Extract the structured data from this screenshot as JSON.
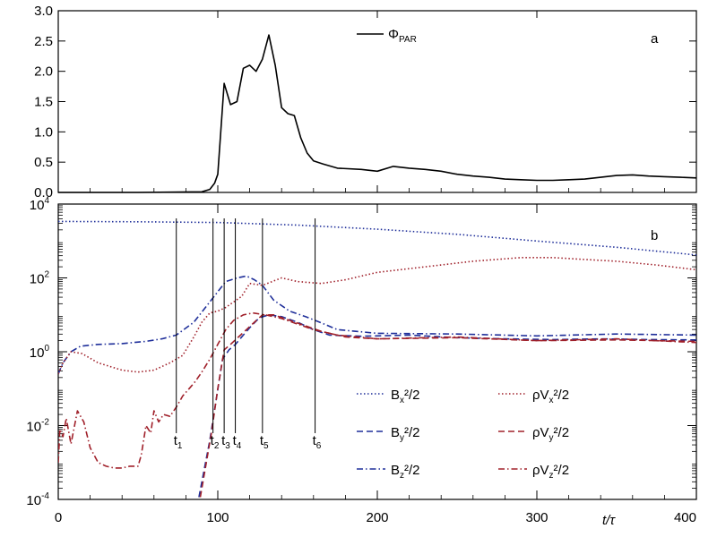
{
  "chart_data": [
    {
      "panel": "a",
      "type": "line",
      "panel_label": "a",
      "x_range": [
        0,
        400
      ],
      "y_range": [
        0,
        3
      ],
      "yticks": [
        "0.0",
        "0.5",
        "1.0",
        "1.5",
        "2.0",
        "2.5",
        "3.0"
      ],
      "ytick_values": [
        0,
        0.5,
        1.0,
        1.5,
        2.0,
        2.5,
        3.0
      ],
      "legend": {
        "symbol": "Φ",
        "subscript": "PAR"
      },
      "series": [
        {
          "name": "Φ_PAR",
          "color": "#000000",
          "style": "solid",
          "x": [
            0,
            50,
            90,
            95,
            98,
            100,
            104,
            108,
            112,
            116,
            120,
            124,
            128,
            132,
            136,
            140,
            144,
            148,
            152,
            156,
            160,
            166,
            175,
            190,
            200,
            210,
            220,
            230,
            240,
            250,
            260,
            270,
            280,
            290,
            300,
            310,
            320,
            330,
            340,
            350,
            360,
            370,
            380,
            390,
            400
          ],
          "y": [
            0,
            0,
            0.01,
            0.05,
            0.15,
            0.3,
            1.8,
            1.45,
            1.5,
            2.05,
            2.1,
            2.0,
            2.2,
            2.6,
            2.1,
            1.4,
            1.3,
            1.27,
            0.9,
            0.65,
            0.52,
            0.47,
            0.4,
            0.38,
            0.35,
            0.43,
            0.4,
            0.38,
            0.35,
            0.3,
            0.27,
            0.25,
            0.22,
            0.21,
            0.2,
            0.2,
            0.21,
            0.22,
            0.25,
            0.28,
            0.29,
            0.27,
            0.26,
            0.25,
            0.24
          ]
        }
      ]
    },
    {
      "panel": "b",
      "type": "line",
      "panel_label": "b",
      "x_range": [
        0,
        400
      ],
      "y_scale": "log",
      "y_range_log10": [
        -4,
        4
      ],
      "xlabel": "t/τ",
      "xticks": [
        "0",
        "100",
        "200",
        "300",
        "400"
      ],
      "xtick_values": [
        0,
        100,
        200,
        300,
        400
      ],
      "ytick_exponents": [
        -4,
        -2,
        0,
        2,
        4
      ],
      "ytick_base": "10",
      "time_markers": [
        {
          "label_main": "t",
          "label_sub": "1",
          "x": 74
        },
        {
          "label_main": "t",
          "label_sub": "2",
          "x": 97
        },
        {
          "label_main": "t",
          "label_sub": "3",
          "x": 104
        },
        {
          "label_main": "t",
          "label_sub": "4",
          "x": 111
        },
        {
          "label_main": "t",
          "label_sub": "5",
          "x": 128
        },
        {
          "label_main": "t",
          "label_sub": "6",
          "x": 161
        }
      ],
      "legend": [
        {
          "text_pre": "B",
          "sub": "x",
          "text_post": "²/2",
          "series": "Bx2"
        },
        {
          "text_pre": "B",
          "sub": "y",
          "text_post": "²/2",
          "series": "By2"
        },
        {
          "text_pre": "B",
          "sub": "z",
          "text_post": "²/2",
          "series": "Bz2"
        },
        {
          "text_pre": "ρV",
          "sub": "x",
          "text_post": "²/2",
          "series": "rVx2"
        },
        {
          "text_pre": "ρV",
          "sub": "y",
          "text_post": "²/2",
          "series": "rVy2"
        },
        {
          "text_pre": "ρV",
          "sub": "z",
          "text_post": "²/2",
          "series": "rVz2"
        }
      ],
      "series": [
        {
          "id": "Bx2",
          "name": "Bx²/2",
          "color": "#1f2f9a",
          "style": "dotted",
          "x": [
            0,
            50,
            100,
            150,
            200,
            250,
            300,
            350,
            400
          ],
          "log10y": [
            3.53,
            3.52,
            3.5,
            3.43,
            3.32,
            3.18,
            3.0,
            2.83,
            2.62
          ]
        },
        {
          "id": "By2",
          "name": "By²/2",
          "color": "#1f2f9a",
          "style": "dashed",
          "x": [
            87,
            91,
            95,
            99,
            103,
            107,
            111,
            116,
            120,
            126,
            132,
            140,
            150,
            160,
            170,
            190,
            220,
            250,
            280,
            310,
            340,
            370,
            400
          ],
          "log10y": [
            -4.2,
            -3.3,
            -2.4,
            -1.3,
            -0.2,
            0.05,
            0.2,
            0.45,
            0.65,
            0.92,
            1.0,
            0.95,
            0.8,
            0.6,
            0.45,
            0.42,
            0.45,
            0.38,
            0.35,
            0.33,
            0.35,
            0.33,
            0.32
          ]
        },
        {
          "id": "Bz2",
          "name": "Bz²/2",
          "color": "#1f2f9a",
          "style": "dashdot",
          "x": [
            0,
            3,
            8,
            14,
            25,
            40,
            55,
            65,
            74,
            85,
            95,
            105,
            112,
            118,
            123,
            128,
            135,
            145,
            155,
            165,
            175,
            200,
            250,
            300,
            350,
            400
          ],
          "log10y": [
            -0.6,
            -0.3,
            0.0,
            0.15,
            0.2,
            0.22,
            0.28,
            0.35,
            0.45,
            0.8,
            1.35,
            1.9,
            2.0,
            2.05,
            1.95,
            1.8,
            1.4,
            1.1,
            0.95,
            0.78,
            0.6,
            0.5,
            0.48,
            0.43,
            0.48,
            0.45
          ]
        },
        {
          "id": "rVx2",
          "name": "ρVx²/2",
          "color": "#a0202a",
          "style": "dotted",
          "x": [
            0,
            3,
            8,
            15,
            25,
            40,
            50,
            60,
            70,
            78,
            85,
            90,
            95,
            100,
            105,
            110,
            115,
            120,
            128,
            140,
            150,
            165,
            180,
            200,
            230,
            260,
            290,
            310,
            330,
            350,
            375,
            400
          ],
          "log10y": [
            -0.6,
            -0.3,
            0.0,
            -0.05,
            -0.3,
            -0.5,
            -0.55,
            -0.5,
            -0.3,
            -0.1,
            0.4,
            0.8,
            1.05,
            1.1,
            1.2,
            1.35,
            1.5,
            1.85,
            1.8,
            2.0,
            1.9,
            1.85,
            1.95,
            2.15,
            2.3,
            2.45,
            2.55,
            2.55,
            2.5,
            2.45,
            2.35,
            2.22
          ]
        },
        {
          "id": "rVy2",
          "name": "ρVy²/2",
          "color": "#a0202a",
          "style": "dashed",
          "x": [
            88,
            92,
            96,
            100,
            104,
            108,
            113,
            118,
            123,
            128,
            135,
            145,
            155,
            165,
            180,
            200,
            250,
            300,
            350,
            400
          ],
          "log10y": [
            -4.2,
            -3.2,
            -2.2,
            -1.0,
            0.05,
            0.2,
            0.4,
            0.6,
            0.8,
            1.0,
            1.0,
            0.85,
            0.7,
            0.55,
            0.4,
            0.35,
            0.38,
            0.3,
            0.32,
            0.28
          ]
        },
        {
          "id": "rVz2",
          "name": "ρVz²/2",
          "color": "#a0202a",
          "style": "dashdot",
          "x": [
            0,
            1,
            3,
            5,
            8,
            12,
            16,
            20,
            25,
            30,
            35,
            40,
            45,
            50,
            52,
            55,
            58,
            60,
            63,
            66,
            70,
            74,
            78,
            82,
            86,
            90,
            95,
            100,
            105,
            110,
            116,
            122,
            130,
            140,
            150,
            160,
            175,
            200,
            250,
            300,
            350,
            400
          ],
          "log10y": [
            -3.0,
            -2.1,
            -2.3,
            -1.8,
            -2.5,
            -1.6,
            -1.9,
            -2.6,
            -3.0,
            -3.1,
            -3.15,
            -3.15,
            -3.1,
            -3.1,
            -2.8,
            -2.0,
            -2.2,
            -1.6,
            -1.9,
            -1.7,
            -1.75,
            -1.5,
            -1.2,
            -1.0,
            -0.8,
            -0.55,
            -0.2,
            0.2,
            0.6,
            0.85,
            1.0,
            1.05,
            1.0,
            0.9,
            0.75,
            0.6,
            0.45,
            0.35,
            0.4,
            0.3,
            0.35,
            0.25
          ]
        }
      ]
    }
  ]
}
